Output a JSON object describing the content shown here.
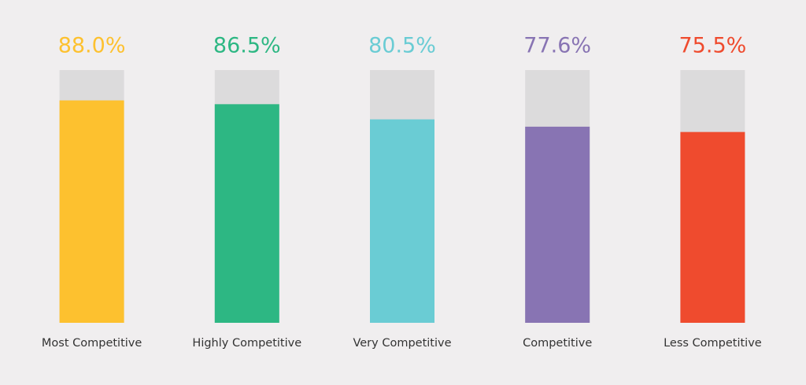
{
  "chart_data": {
    "type": "bar",
    "categories": [
      "Most Competitive",
      "Highly Competitive",
      "Very Competitive",
      "Competitive",
      "Less Competitive"
    ],
    "values": [
      88.0,
      86.5,
      80.5,
      77.6,
      75.5
    ],
    "value_labels": [
      "88.0%",
      "86.5%",
      "80.5%",
      "77.6%",
      "75.5%"
    ],
    "colors": [
      "#fdc12f",
      "#2db783",
      "#6accd4",
      "#8874b3",
      "#ef4b2e"
    ],
    "ylim": [
      0,
      100
    ]
  }
}
